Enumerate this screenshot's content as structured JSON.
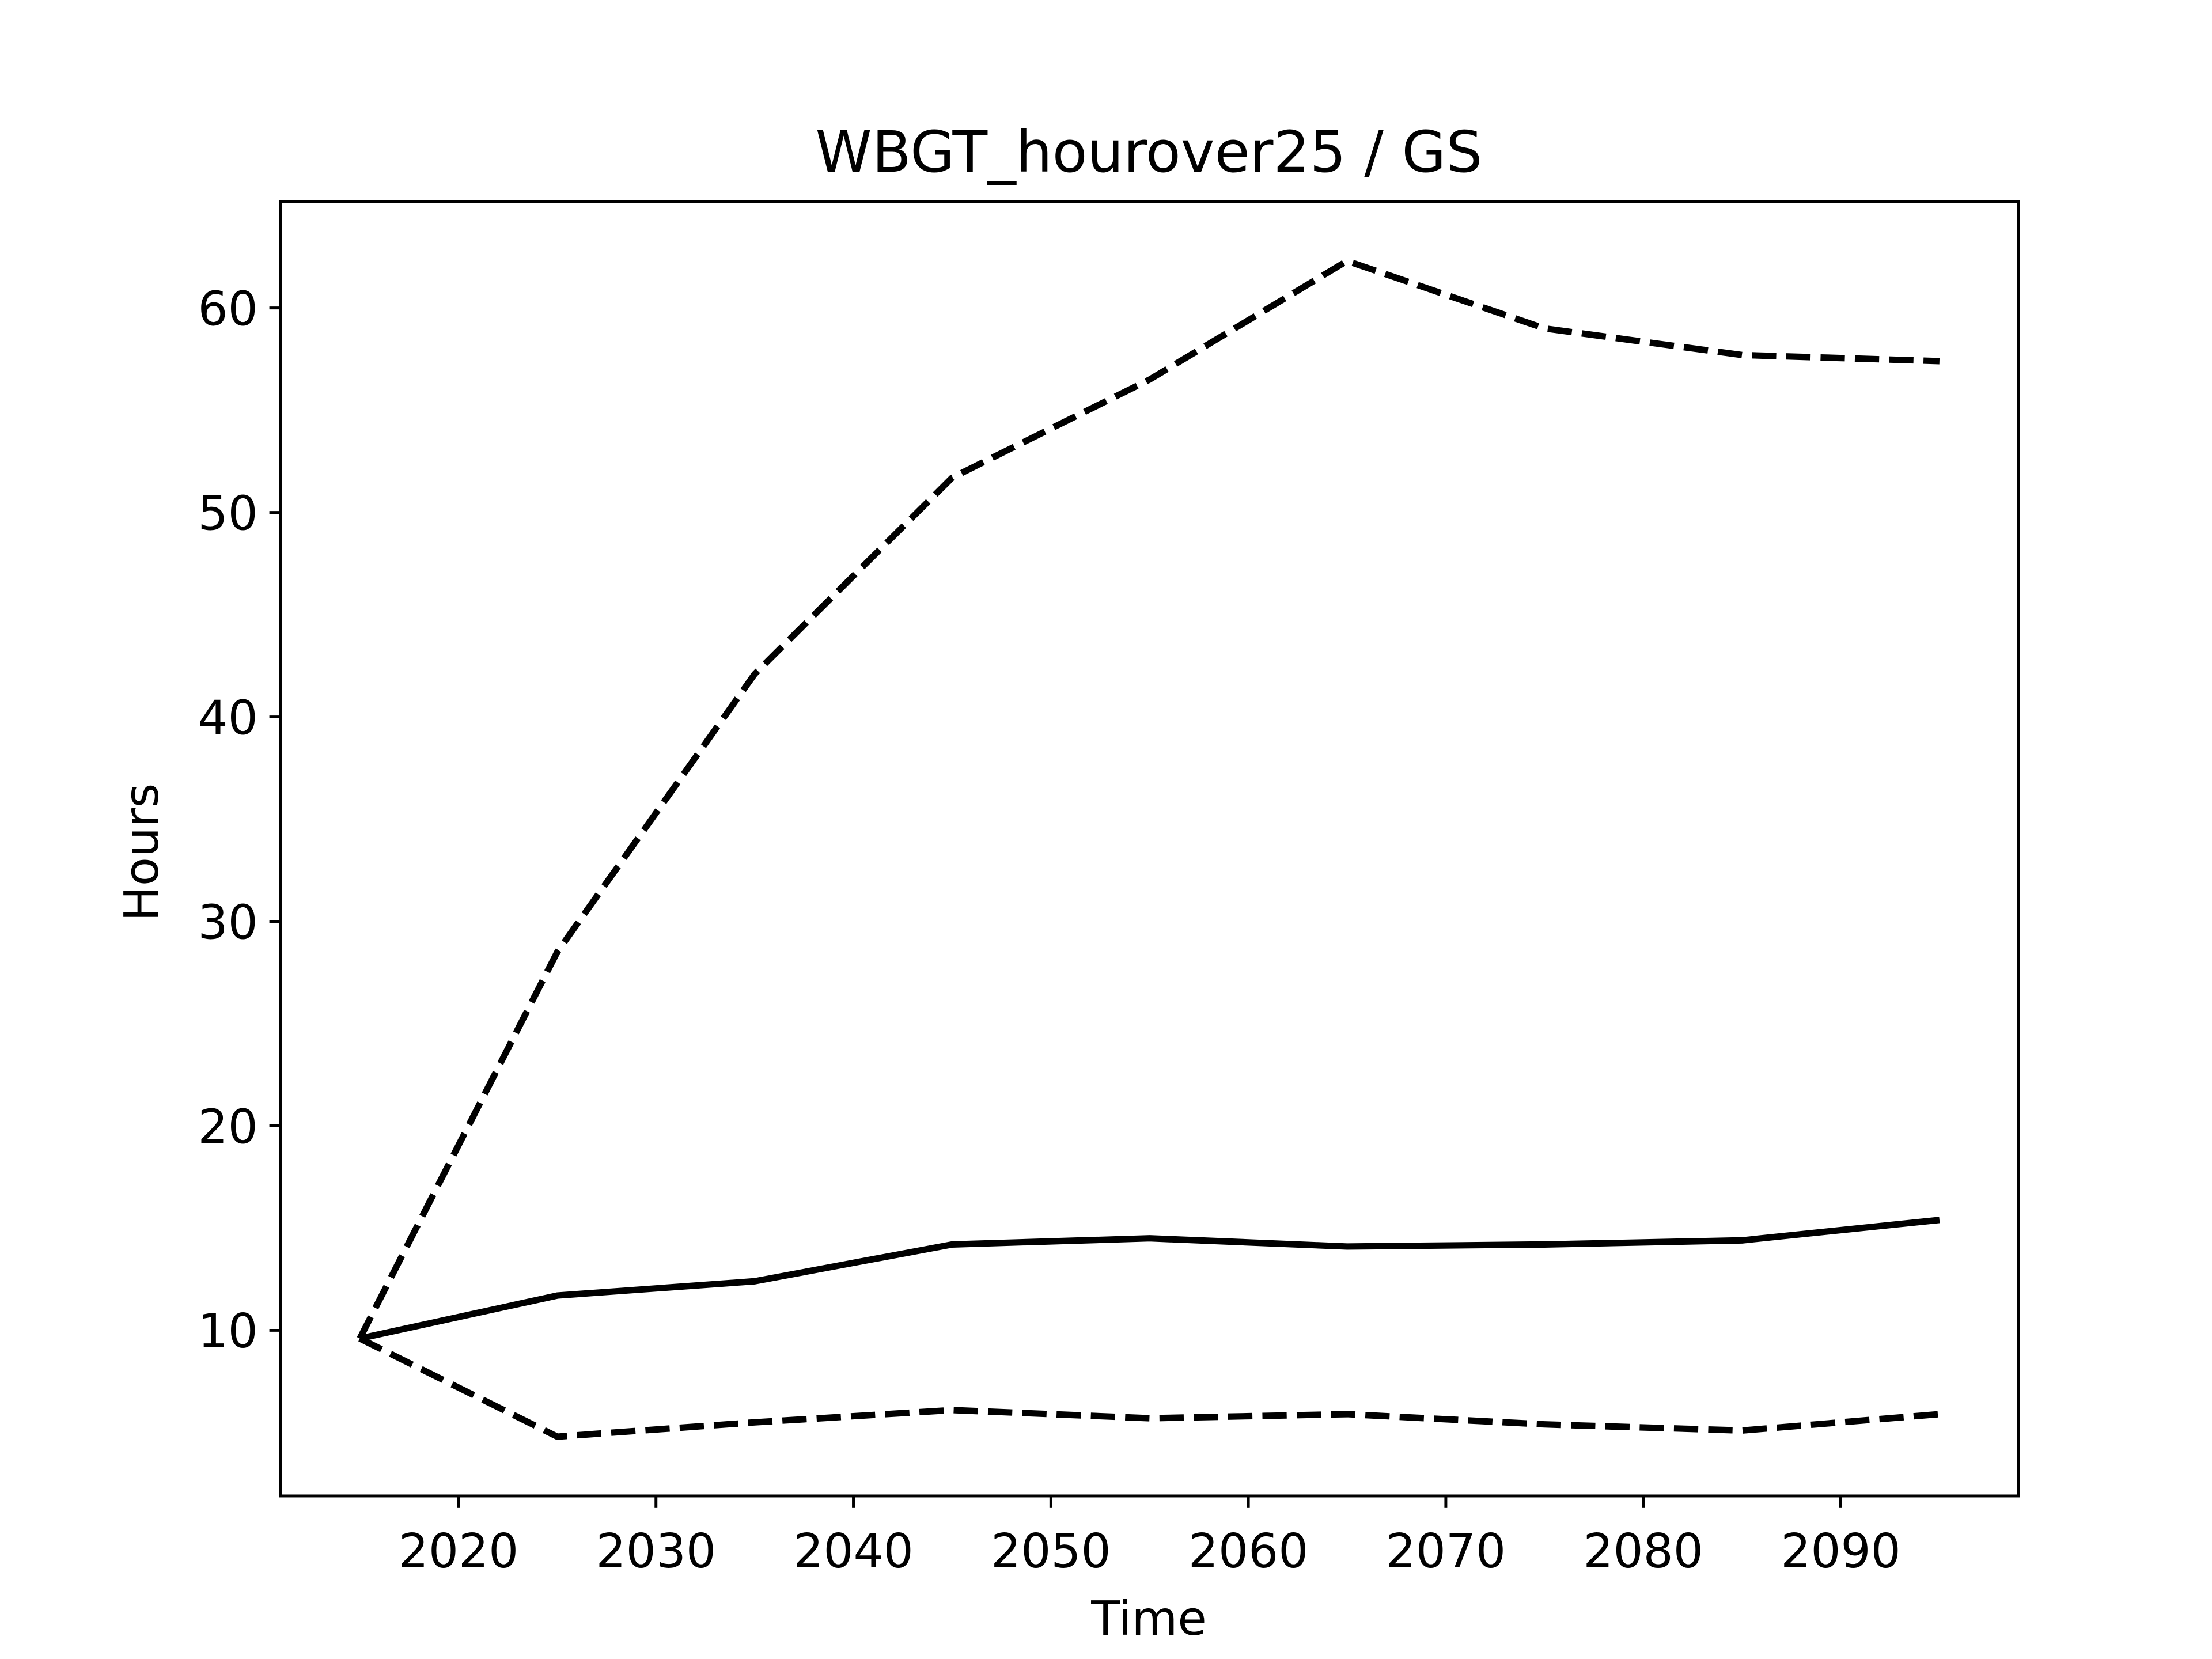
{
  "chart_data": {
    "type": "line",
    "title": "WBGT_hourover25 / GS",
    "xlabel": "Time",
    "ylabel": "Hours",
    "x": [
      2015,
      2025,
      2035,
      2045,
      2055,
      2065,
      2075,
      2085,
      2095
    ],
    "series": [
      {
        "color": "#000000",
        "dash": "solid",
        "values": [
          9.6,
          11.7,
          12.4,
          14.2,
          14.5,
          14.1,
          14.2,
          14.4,
          15.4
        ]
      },
      {
        "color": "#000000",
        "dash": "dashed",
        "values": [
          9.6,
          28.5,
          42.1,
          51.7,
          56.5,
          62.3,
          59.0,
          57.7,
          57.4
        ]
      },
      {
        "color": "#000000",
        "dash": "dashed",
        "values": [
          9.6,
          4.8,
          5.5,
          6.1,
          5.7,
          5.9,
          5.4,
          5.1,
          5.9
        ]
      }
    ],
    "xlim": [
      2011,
      2099
    ],
    "xticks": [
      2020,
      2030,
      2040,
      2050,
      2060,
      2070,
      2080,
      2090
    ],
    "ylim": [
      1.9,
      65.2
    ],
    "yticks": [
      10,
      20,
      30,
      40,
      50,
      60
    ],
    "grid": false
  }
}
